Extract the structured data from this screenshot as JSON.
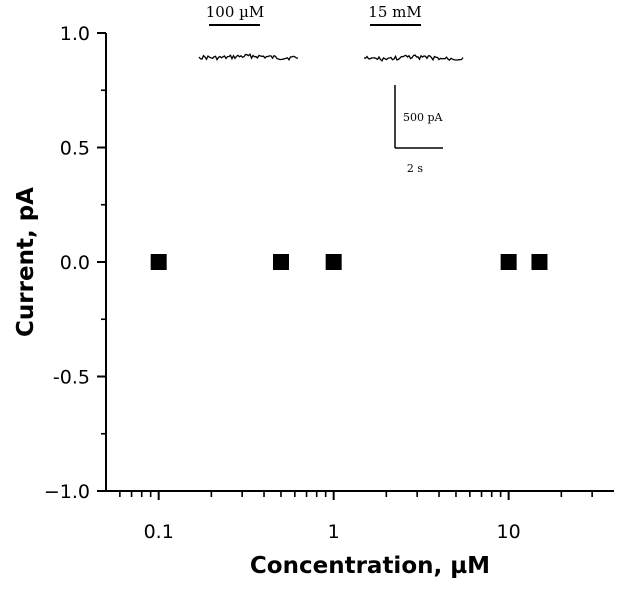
{
  "chart_data": {
    "type": "scatter",
    "xlabel": "Concentration, µM",
    "ylabel": "Current, pA",
    "xscale": "log",
    "xlim": [
      0.05,
      40
    ],
    "ylim": [
      -1.0,
      1.0
    ],
    "x_ticks": [
      {
        "value": 0.1,
        "label": "0.1"
      },
      {
        "value": 1,
        "label": "1"
      },
      {
        "value": 10,
        "label": "10"
      }
    ],
    "y_ticks": [
      {
        "value": 1.0,
        "label": "1.0"
      },
      {
        "value": 0.5,
        "label": "0.5"
      },
      {
        "value": 0.0,
        "label": "0.0"
      },
      {
        "value": -0.5,
        "label": "-0.5"
      },
      {
        "value": -1.0,
        "label": "−1.0"
      }
    ],
    "marker": "filled-square",
    "points": [
      {
        "x": 0.1,
        "y": 0.0
      },
      {
        "x": 0.5,
        "y": 0.0
      },
      {
        "x": 1,
        "y": 0.0
      },
      {
        "x": 10,
        "y": 0.0
      },
      {
        "x": 15,
        "y": 0.0
      }
    ],
    "grid": false,
    "legend": false
  },
  "inset": {
    "traces": [
      {
        "bar_label": "100 µM"
      },
      {
        "bar_label": "15 mM"
      }
    ],
    "scale_bar": {
      "vertical_label": "500 pA",
      "horizontal_label": "2 s"
    }
  }
}
